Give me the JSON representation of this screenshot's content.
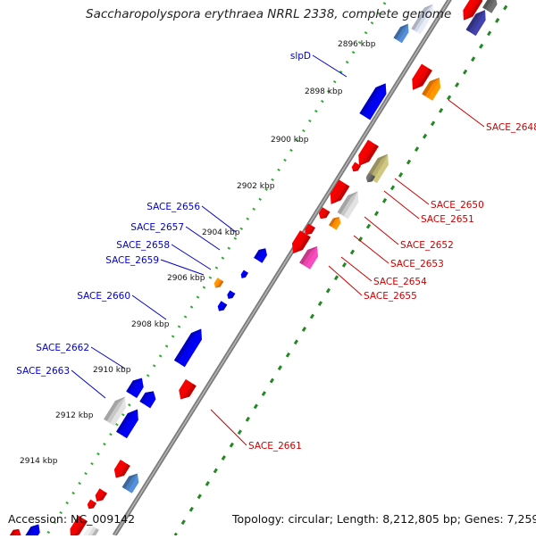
{
  "title": "Saccharopolyspora erythraea NRRL 2338, complete genome",
  "footer": {
    "accession": "Accession: NC_009142",
    "summary": "Topology: circular; Length: 8,212,805 bp; Genes: 7,259"
  },
  "colors": {
    "backbone": "#888888",
    "forward_dots": "#33aa33",
    "reverse_dots": "#228822",
    "forward_label": "#0000cc",
    "reverse_label": "#cc0000"
  },
  "ticks": [
    "2896 kbp",
    "2898 kbp",
    "2900 kbp",
    "2902 kbp",
    "2904 kbp",
    "2906 kbp",
    "2908 kbp",
    "2910 kbp",
    "2912 kbp",
    "2914 kbp"
  ],
  "forward_labels": [
    "slpD",
    "SACE_2656",
    "SACE_2657",
    "SACE_2658",
    "SACE_2659",
    "SACE_2660",
    "SACE_2662",
    "SACE_2663"
  ],
  "reverse_labels": [
    "SACE_2648",
    "SACE_2650",
    "SACE_2651",
    "SACE_2652",
    "SACE_2653",
    "SACE_2654",
    "SACE_2655",
    "SACE_2661"
  ]
}
